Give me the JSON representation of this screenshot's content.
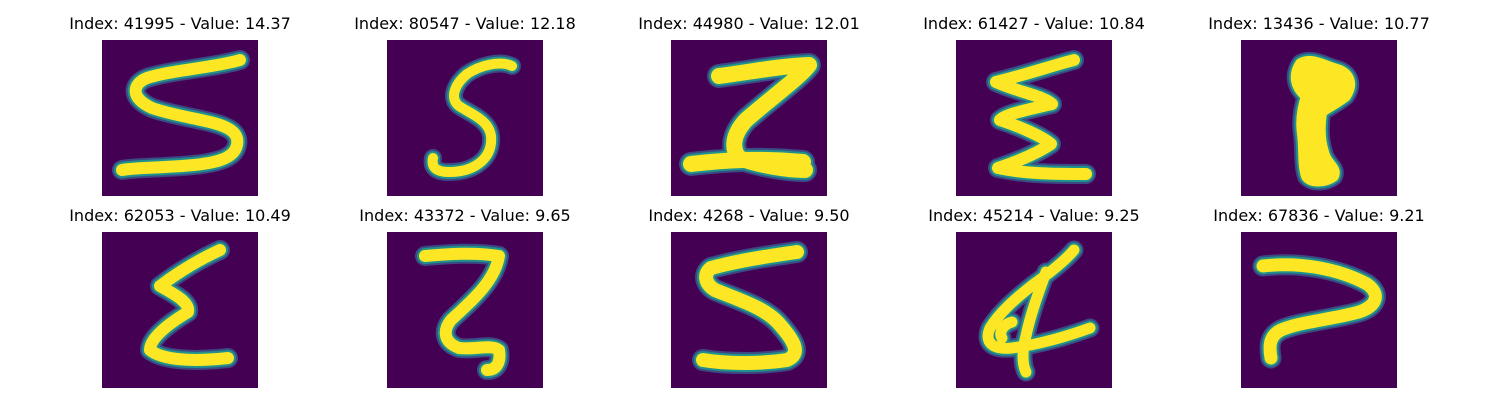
{
  "panels": [
    {
      "title": "Index: 41995 - Value: 14.37",
      "digit": "5-wide"
    },
    {
      "title": "Index: 80547 - Value: 12.18",
      "digit": "5-narrow"
    },
    {
      "title": "Index: 44980 - Value: 12.01",
      "digit": "Z-thick"
    },
    {
      "title": "Index: 61427 - Value: 10.84",
      "digit": "sigma-zig"
    },
    {
      "title": "Index: 13436 - Value: 10.77",
      "digit": "blob-1"
    },
    {
      "title": "Index: 62053 - Value: 10.49",
      "digit": "sigma"
    },
    {
      "title": "Index: 43372 - Value: 9.65",
      "digit": "z-hook"
    },
    {
      "title": "Index: 4268 - Value: 9.50",
      "digit": "5-tall"
    },
    {
      "title": "Index: 45214 - Value: 9.25",
      "digit": "4-loop"
    },
    {
      "title": "Index: 67836 - Value: 9.21",
      "digit": "7-curve"
    }
  ],
  "colors": {
    "background": "#440154",
    "stroke_core": "#fde725",
    "stroke_edge": "#21918c",
    "stroke_outer": "#3b528b"
  }
}
